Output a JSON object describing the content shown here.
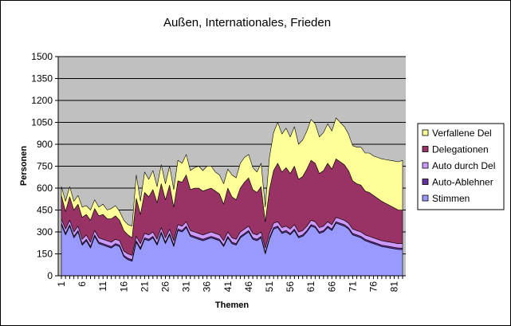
{
  "chart_data": {
    "type": "area",
    "stacked": true,
    "title": "Außen, Internationales, Frieden",
    "xlabel": "Themen",
    "ylabel": "Personen",
    "ylim": [
      0,
      1500
    ],
    "yticks": [
      0,
      150,
      300,
      450,
      600,
      750,
      900,
      1050,
      1200,
      1350,
      1500
    ],
    "xtick_labels": [
      "1",
      "6",
      "11",
      "16",
      "21",
      "26",
      "31",
      "36",
      "41",
      "46",
      "51",
      "56",
      "61",
      "66",
      "71",
      "76",
      "81"
    ],
    "x_count": 83,
    "grid": true,
    "legend_position": "right",
    "series": [
      {
        "name": "Stimmen",
        "color": "#9999ff",
        "values": [
          350,
          280,
          340,
          260,
          300,
          210,
          240,
          190,
          270,
          220,
          210,
          200,
          190,
          210,
          200,
          130,
          110,
          100,
          230,
          180,
          250,
          240,
          260,
          210,
          290,
          220,
          280,
          200,
          310,
          300,
          330,
          270,
          260,
          250,
          240,
          250,
          260,
          250,
          240,
          200,
          260,
          220,
          210,
          260,
          280,
          300,
          250,
          240,
          260,
          150,
          250,
          320,
          330,
          290,
          300,
          280,
          310,
          260,
          270,
          300,
          340,
          330,
          290,
          300,
          330,
          310,
          360,
          350,
          340,
          320,
          280,
          270,
          260,
          240,
          230,
          220,
          210,
          200,
          195,
          190,
          185,
          180,
          180
        ]
      },
      {
        "name": "Auto-Ablehner",
        "color": "#663399",
        "values": [
          10,
          10,
          10,
          10,
          10,
          10,
          10,
          10,
          10,
          10,
          10,
          10,
          10,
          10,
          10,
          10,
          10,
          10,
          10,
          10,
          10,
          10,
          10,
          10,
          10,
          10,
          10,
          10,
          10,
          10,
          10,
          10,
          10,
          10,
          10,
          10,
          10,
          10,
          10,
          10,
          10,
          10,
          10,
          10,
          10,
          10,
          10,
          10,
          10,
          10,
          10,
          10,
          10,
          10,
          10,
          10,
          10,
          10,
          10,
          10,
          10,
          10,
          10,
          10,
          10,
          10,
          10,
          10,
          10,
          10,
          10,
          10,
          10,
          10,
          10,
          10,
          10,
          10,
          10,
          10,
          10,
          10,
          10
        ]
      },
      {
        "name": "Auto durch Del",
        "color": "#cc99ff",
        "values": [
          30,
          30,
          30,
          30,
          30,
          30,
          30,
          30,
          30,
          30,
          30,
          30,
          30,
          30,
          30,
          30,
          30,
          30,
          30,
          30,
          30,
          30,
          30,
          30,
          30,
          30,
          30,
          30,
          30,
          30,
          30,
          30,
          30,
          30,
          30,
          30,
          30,
          30,
          30,
          30,
          30,
          30,
          30,
          30,
          30,
          30,
          30,
          30,
          30,
          30,
          30,
          30,
          30,
          30,
          30,
          30,
          30,
          30,
          30,
          30,
          30,
          30,
          30,
          30,
          30,
          30,
          30,
          30,
          30,
          30,
          30,
          30,
          30,
          30,
          30,
          30,
          30,
          30,
          30,
          30,
          30,
          30,
          30
        ]
      },
      {
        "name": "Delegationen",
        "color": "#993366",
        "values": [
          160,
          120,
          160,
          150,
          150,
          150,
          140,
          150,
          150,
          150,
          170,
          150,
          160,
          160,
          140,
          140,
          130,
          120,
          260,
          200,
          280,
          260,
          290,
          250,
          300,
          260,
          300,
          230,
          300,
          300,
          320,
          280,
          300,
          310,
          300,
          300,
          300,
          290,
          280,
          250,
          300,
          280,
          270,
          300,
          320,
          330,
          300,
          290,
          310,
          180,
          300,
          360,
          400,
          380,
          400,
          380,
          400,
          360,
          370,
          390,
          410,
          400,
          370,
          380,
          400,
          380,
          400,
          390,
          380,
          360,
          330,
          320,
          320,
          300,
          300,
          290,
          280,
          270,
          260,
          250,
          240,
          230,
          230
        ]
      },
      {
        "name": "Verfallene Del",
        "color": "#ffff99",
        "values": [
          60,
          70,
          70,
          60,
          60,
          70,
          60,
          70,
          60,
          60,
          70,
          60,
          70,
          70,
          60,
          70,
          70,
          80,
          160,
          90,
          140,
          120,
          130,
          110,
          130,
          110,
          130,
          120,
          140,
          130,
          140,
          130,
          140,
          150,
          140,
          160,
          150,
          130,
          130,
          140,
          130,
          150,
          150,
          170,
          170,
          160,
          150,
          140,
          160,
          100,
          220,
          260,
          280,
          260,
          270,
          250,
          270,
          240,
          250,
          260,
          280,
          270,
          250,
          260,
          270,
          260,
          280,
          270,
          260,
          250,
          240,
          250,
          260,
          260,
          270,
          270,
          280,
          290,
          300,
          310,
          320,
          330,
          340
        ]
      }
    ]
  }
}
